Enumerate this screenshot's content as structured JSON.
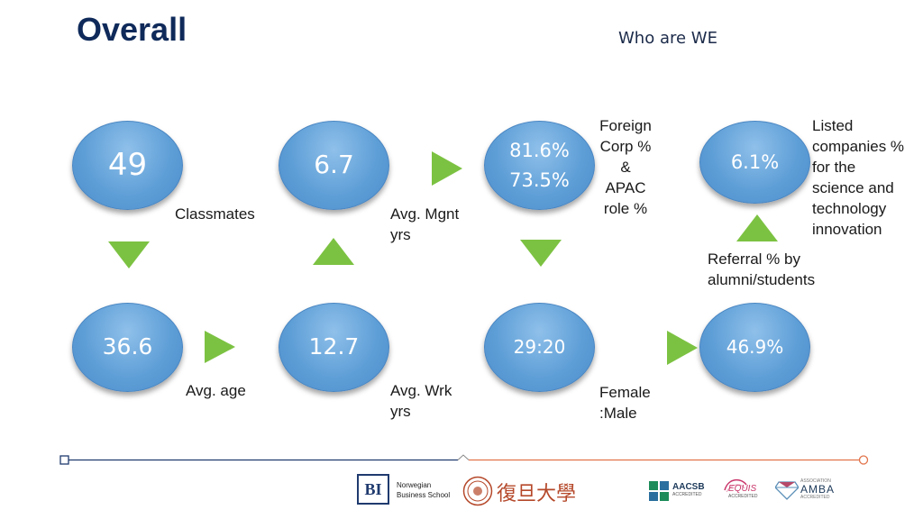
{
  "slide": {
    "title": "Overall",
    "subtitle": "Who are WE"
  },
  "bubbles": {
    "classmates": {
      "value": "49"
    },
    "mgnt_yrs": {
      "value": "6.7"
    },
    "foreign_apac": {
      "values": [
        "81.6%",
        "73.5%"
      ]
    },
    "listed": {
      "value": "6.1%"
    },
    "age": {
      "value": "36.6"
    },
    "wrk_yrs": {
      "value": "12.7"
    },
    "gender": {
      "value": "29:20"
    },
    "referral": {
      "value": "46.9%"
    }
  },
  "labels": {
    "classmates": [
      "Classmates"
    ],
    "mgnt_yrs": [
      "Avg. Mgnt",
      "yrs"
    ],
    "foreign_apac": [
      "Foreign",
      "Corp %",
      "&",
      "APAC",
      "role %"
    ],
    "listed": [
      "Listed",
      "companies %",
      "for the",
      "science and",
      "technology",
      "innovation"
    ],
    "referral": [
      "Referral % by",
      "alumni/students"
    ],
    "age": [
      "Avg. age"
    ],
    "wrk_yrs": [
      "Avg. Wrk",
      "yrs"
    ],
    "gender": [
      "Female",
      ":Male"
    ]
  },
  "colors": {
    "title": "#0f2a5a",
    "bubble": "#5f9fd7",
    "arrow": "#7cc242",
    "footer_left": "#1f3a6e",
    "footer_right": "#e2734a"
  },
  "footer": {
    "bi_mark": "BI",
    "bi_name": [
      "Norwegian",
      "Business School"
    ],
    "fudan_name": "復旦大學",
    "aacsb": [
      "AACSB",
      "ACCREDITED"
    ],
    "equis": [
      "EQUIS",
      "ACCREDITED"
    ],
    "amba": [
      "ASSOCIATION",
      "AMBA",
      "ACCREDITED"
    ]
  }
}
